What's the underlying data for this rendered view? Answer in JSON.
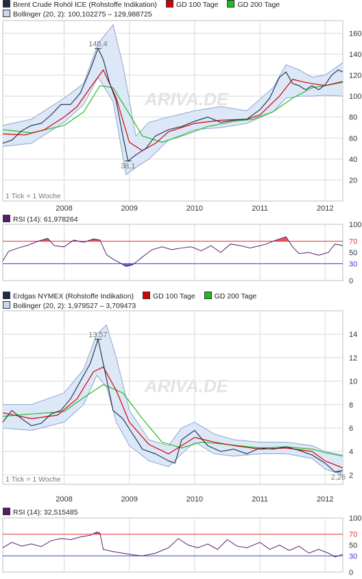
{
  "colors": {
    "price": "#1c2b4a",
    "sma100": "#d40000",
    "sma200": "#22bb22",
    "band_fill": "#dce8f7",
    "band_line": "#8ea6cc",
    "rsi": "#5b1a6e",
    "rsi70": "#e03030",
    "rsi30": "#3a3ad0",
    "grid": "#d8d8d8",
    "watermark": "#e3e3e3"
  },
  "watermark": "ARIVA.DE",
  "chart_data": [
    {
      "type": "line",
      "id": "brent",
      "legend": {
        "price": "Brent Crude Rohöl ICE (Rohstoffe Indikation)",
        "sma100": "GD 100 Tage",
        "sma200": "GD 200 Tage",
        "bollinger": "Bollinger (20, 2): 100,102275 – 129,988725"
      },
      "tick_note": "1 Tick = 1 Woche",
      "x_tick_labels": [
        "2008",
        "2009",
        "2010",
        "2011",
        "2012"
      ],
      "x_tick_dates": [
        2008.0,
        2009.0,
        2010.0,
        2011.0,
        2012.0
      ],
      "x_range": [
        2007.06,
        2012.27
      ],
      "y_range": [
        0,
        172
      ],
      "y_ticks": [
        20,
        40,
        60,
        80,
        100,
        120,
        140,
        160
      ],
      "y_tick_labels": [
        "20",
        "40",
        "60",
        "80",
        "100",
        "120",
        "140",
        "160"
      ],
      "annotations": [
        {
          "text": "145,4",
          "date": 2008.52,
          "value": 145.4
        },
        {
          "text": "38,1",
          "date": 2008.98,
          "value": 38.1
        }
      ],
      "series": [
        {
          "role": "price",
          "x": [
            2007.06,
            2007.2,
            2007.35,
            2007.5,
            2007.65,
            2007.8,
            2007.95,
            2008.1,
            2008.25,
            2008.4,
            2008.52,
            2008.6,
            2008.7,
            2008.8,
            2008.9,
            2008.98,
            2009.1,
            2009.25,
            2009.4,
            2009.6,
            2009.8,
            2010.0,
            2010.2,
            2010.4,
            2010.6,
            2010.8,
            2011.0,
            2011.15,
            2011.3,
            2011.4,
            2011.5,
            2011.6,
            2011.7,
            2011.8,
            2011.9,
            2012.0,
            2012.1,
            2012.2,
            2012.27
          ],
          "y": [
            55,
            58,
            67,
            72,
            74,
            82,
            92,
            92,
            103,
            125,
            145.4,
            135,
            112,
            95,
            62,
            38.1,
            44,
            50,
            62,
            68,
            71,
            76,
            80,
            75,
            77,
            78,
            87,
            98,
            118,
            123,
            112,
            110,
            106,
            110,
            106,
            111,
            120,
            125,
            123
          ]
        },
        {
          "role": "sma100",
          "x": [
            2007.06,
            2007.4,
            2007.7,
            2008.0,
            2008.2,
            2008.4,
            2008.6,
            2008.8,
            2009.0,
            2009.2,
            2009.4,
            2009.6,
            2009.8,
            2010.0,
            2010.4,
            2010.8,
            2011.0,
            2011.3,
            2011.5,
            2011.7,
            2012.0,
            2012.27
          ],
          "y": [
            64,
            63,
            68,
            80,
            90,
            108,
            125,
            98,
            56,
            48,
            55,
            66,
            70,
            74,
            77,
            78,
            82,
            100,
            116,
            113,
            110,
            114
          ]
        },
        {
          "role": "sma200",
          "x": [
            2007.06,
            2007.5,
            2008.0,
            2008.3,
            2008.55,
            2008.75,
            2008.95,
            2009.2,
            2009.5,
            2009.8,
            2010.2,
            2010.6,
            2010.9,
            2011.2,
            2011.5,
            2011.8,
            2012.0,
            2012.27
          ],
          "y": [
            68,
            65,
            72,
            85,
            110,
            108,
            88,
            62,
            56,
            62,
            71,
            76,
            78,
            85,
            98,
            108,
            110,
            113
          ]
        },
        {
          "role": "band_upper",
          "x": [
            2007.06,
            2007.5,
            2008.0,
            2008.3,
            2008.52,
            2008.75,
            2008.9,
            2009.1,
            2009.3,
            2009.6,
            2010.0,
            2010.4,
            2010.8,
            2011.2,
            2011.4,
            2011.6,
            2011.8,
            2012.0,
            2012.27
          ],
          "y": [
            72,
            78,
            98,
            112,
            150,
            168,
            130,
            62,
            75,
            80,
            86,
            90,
            86,
            108,
            130,
            125,
            118,
            120,
            132
          ]
        },
        {
          "role": "band_lower",
          "x": [
            2007.06,
            2007.5,
            2008.0,
            2008.3,
            2008.52,
            2008.75,
            2008.95,
            2009.1,
            2009.3,
            2009.6,
            2010.0,
            2010.4,
            2010.8,
            2011.2,
            2011.4,
            2011.6,
            2011.8,
            2012.0,
            2012.27
          ],
          "y": [
            52,
            55,
            75,
            92,
            118,
            95,
            25,
            32,
            40,
            58,
            68,
            70,
            74,
            85,
            98,
            100,
            100,
            101,
            100
          ]
        }
      ]
    },
    {
      "type": "line",
      "id": "brent_rsi",
      "legend": {
        "rsi": "RSI (14): 61,978264"
      },
      "y_range": [
        0,
        100
      ],
      "y_ticks": [
        0,
        30,
        50,
        70,
        100
      ],
      "y_tick_labels": [
        "0",
        "30",
        "50",
        "70",
        "100"
      ],
      "thresholds": {
        "upper": 70,
        "lower": 30
      },
      "x_range": [
        2007.06,
        2012.27
      ],
      "series": [
        {
          "role": "rsi",
          "x": [
            2007.06,
            2007.15,
            2007.3,
            2007.45,
            2007.6,
            2007.75,
            2007.85,
            2008.0,
            2008.15,
            2008.3,
            2008.45,
            2008.55,
            2008.65,
            2008.75,
            2008.85,
            2008.95,
            2009.05,
            2009.2,
            2009.35,
            2009.5,
            2009.65,
            2009.8,
            2009.95,
            2010.1,
            2010.25,
            2010.4,
            2010.55,
            2010.7,
            2010.85,
            2011.0,
            2011.1,
            2011.2,
            2011.3,
            2011.4,
            2011.5,
            2011.6,
            2011.75,
            2011.9,
            2012.05,
            2012.15,
            2012.27
          ],
          "y": [
            35,
            52,
            58,
            63,
            70,
            75,
            62,
            60,
            72,
            68,
            74,
            72,
            46,
            38,
            32,
            25,
            28,
            42,
            55,
            60,
            55,
            58,
            60,
            53,
            62,
            50,
            65,
            62,
            58,
            62,
            65,
            70,
            74,
            78,
            60,
            48,
            50,
            45,
            50,
            65,
            62
          ]
        }
      ]
    },
    {
      "type": "line",
      "id": "erdgas",
      "legend": {
        "price": "Erdgas NYMEX (Rohstoffe Indikation)",
        "sma100": "GD 100 Tage",
        "sma200": "GD 200 Tage",
        "bollinger": "Bollinger (20, 2): 1,979527 – 3,709473"
      },
      "tick_note": "1 Tick = 1 Woche",
      "x_tick_labels": [
        "2008",
        "2009",
        "2010",
        "2011",
        "2012"
      ],
      "x_tick_dates": [
        2008.0,
        2009.0,
        2010.0,
        2011.0,
        2012.0
      ],
      "x_range": [
        2007.06,
        2012.27
      ],
      "y_range": [
        1.2,
        16.0
      ],
      "y_ticks": [
        2,
        4,
        6,
        8,
        10,
        12,
        14
      ],
      "y_tick_labels": [
        "2",
        "4",
        "6",
        "8",
        "10",
        "12",
        "14"
      ],
      "annotations": [
        {
          "text": "13,57",
          "date": 2008.52,
          "value": 13.57
        },
        {
          "text": "2,26",
          "date": 2012.2,
          "value": 2.26
        }
      ],
      "series": [
        {
          "role": "price",
          "x": [
            2007.06,
            2007.2,
            2007.35,
            2007.5,
            2007.65,
            2007.8,
            2007.95,
            2008.1,
            2008.25,
            2008.4,
            2008.52,
            2008.62,
            2008.75,
            2008.9,
            2009.05,
            2009.2,
            2009.4,
            2009.6,
            2009.7,
            2009.8,
            2010.0,
            2010.2,
            2010.4,
            2010.6,
            2010.8,
            2011.0,
            2011.2,
            2011.4,
            2011.6,
            2011.8,
            2012.0,
            2012.15,
            2012.27
          ],
          "y": [
            6.5,
            7.5,
            6.8,
            6.2,
            6.4,
            7.2,
            7.5,
            8.5,
            10.0,
            11.5,
            13.57,
            11.0,
            7.5,
            6.8,
            5.5,
            4.2,
            3.8,
            3.2,
            3.0,
            5.0,
            5.8,
            4.5,
            4.0,
            4.2,
            3.8,
            4.3,
            4.2,
            4.4,
            4.1,
            3.7,
            3.0,
            2.26,
            2.4
          ]
        },
        {
          "role": "sma100",
          "x": [
            2007.06,
            2007.5,
            2007.9,
            2008.2,
            2008.45,
            2008.6,
            2008.8,
            2009.0,
            2009.3,
            2009.6,
            2009.8,
            2010.0,
            2010.3,
            2010.6,
            2011.0,
            2011.4,
            2011.8,
            2012.0,
            2012.27
          ],
          "y": [
            7.3,
            6.8,
            7.1,
            8.5,
            10.8,
            11.2,
            9.2,
            6.5,
            4.6,
            3.8,
            4.5,
            5.2,
            4.8,
            4.5,
            4.2,
            4.3,
            4.0,
            3.2,
            2.6
          ]
        },
        {
          "role": "sma200",
          "x": [
            2007.06,
            2007.5,
            2008.0,
            2008.3,
            2008.6,
            2008.9,
            2009.2,
            2009.5,
            2009.8,
            2010.1,
            2010.5,
            2011.0,
            2011.4,
            2011.8,
            2012.0,
            2012.27
          ],
          "y": [
            7.0,
            7.2,
            7.4,
            8.6,
            9.7,
            9.0,
            6.8,
            4.8,
            4.3,
            4.8,
            4.6,
            4.3,
            4.4,
            4.2,
            3.9,
            3.6
          ]
        },
        {
          "role": "band_upper",
          "x": [
            2007.06,
            2007.5,
            2008.0,
            2008.3,
            2008.5,
            2008.65,
            2008.8,
            2009.0,
            2009.3,
            2009.6,
            2009.8,
            2010.0,
            2010.3,
            2010.6,
            2011.0,
            2011.4,
            2011.8,
            2012.0,
            2012.27
          ],
          "y": [
            8.0,
            8.0,
            9.0,
            11.0,
            14.0,
            14.8,
            12.0,
            7.5,
            5.0,
            4.5,
            6.0,
            6.5,
            5.5,
            5.0,
            4.8,
            4.8,
            4.5,
            4.0,
            3.7
          ]
        },
        {
          "role": "band_lower",
          "x": [
            2007.06,
            2007.5,
            2008.0,
            2008.3,
            2008.5,
            2008.65,
            2008.8,
            2009.0,
            2009.3,
            2009.6,
            2009.8,
            2010.0,
            2010.3,
            2010.6,
            2011.0,
            2011.4,
            2011.8,
            2012.0,
            2012.27
          ],
          "y": [
            6.0,
            5.8,
            6.5,
            8.0,
            10.5,
            9.5,
            6.5,
            4.5,
            3.2,
            2.7,
            3.8,
            4.8,
            3.8,
            3.6,
            3.8,
            3.8,
            3.4,
            2.5,
            2.0
          ]
        }
      ]
    },
    {
      "type": "line",
      "id": "erdgas_rsi",
      "legend": {
        "rsi": "RSI (14): 32,515485"
      },
      "y_range": [
        0,
        100
      ],
      "y_ticks": [
        0,
        30,
        50,
        70,
        100
      ],
      "y_tick_labels": [
        "0",
        "30",
        "50",
        "70",
        "100"
      ],
      "thresholds": {
        "upper": 70,
        "lower": 30
      },
      "x_range": [
        2007.06,
        2012.27
      ],
      "series": [
        {
          "role": "rsi",
          "x": [
            2007.06,
            2007.2,
            2007.35,
            2007.5,
            2007.65,
            2007.8,
            2007.95,
            2008.1,
            2008.25,
            2008.4,
            2008.5,
            2008.55,
            2008.6,
            2008.75,
            2008.9,
            2009.05,
            2009.2,
            2009.4,
            2009.6,
            2009.75,
            2009.9,
            2010.05,
            2010.2,
            2010.35,
            2010.5,
            2010.65,
            2010.8,
            2011.0,
            2011.15,
            2011.3,
            2011.45,
            2011.6,
            2011.75,
            2011.9,
            2012.05,
            2012.15,
            2012.27
          ],
          "y": [
            45,
            55,
            48,
            52,
            47,
            58,
            62,
            60,
            65,
            68,
            74,
            72,
            42,
            38,
            35,
            32,
            30,
            35,
            45,
            62,
            50,
            45,
            52,
            42,
            60,
            48,
            45,
            55,
            42,
            50,
            40,
            48,
            35,
            42,
            35,
            28,
            33
          ]
        }
      ]
    }
  ]
}
